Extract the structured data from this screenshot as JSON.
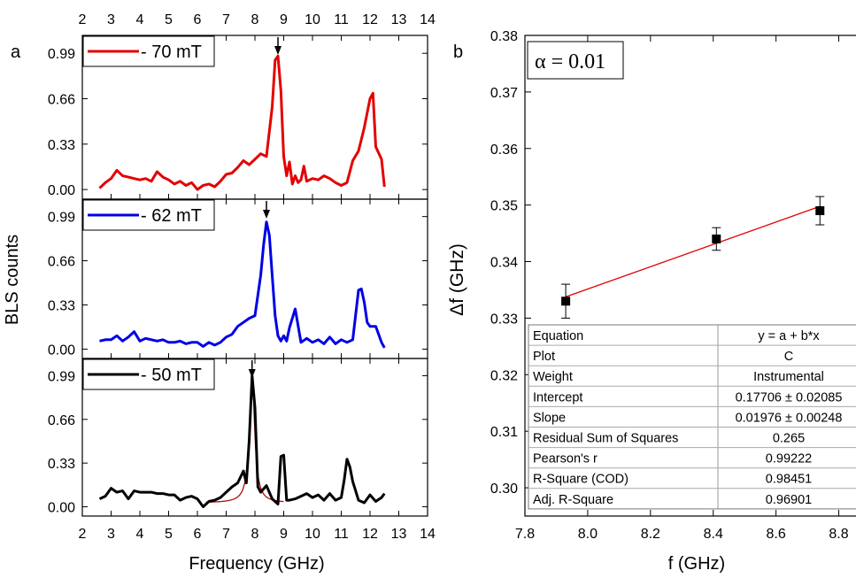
{
  "chart_data": [
    {
      "panel_label": "a",
      "type": "line",
      "xlabel": "Frequency (GHz)",
      "ylabel": "BLS counts",
      "xlim": [
        2,
        14
      ],
      "x_ticks": [
        2,
        3,
        4,
        5,
        6,
        7,
        8,
        9,
        10,
        11,
        12,
        13,
        14
      ],
      "y_ticks": [
        0.0,
        0.33,
        0.66,
        0.99
      ],
      "y_tick_labels": [
        "0.00",
        "0.33",
        "0.66",
        "0.99"
      ],
      "ylim": [
        -0.07,
        1.12
      ],
      "stacked_panels": [
        {
          "legend": "- 70 mT",
          "color": "#e30000",
          "arrow_x": 8.8,
          "x": [
            2.6,
            2.8,
            3.0,
            3.2,
            3.4,
            3.6,
            3.8,
            4.0,
            4.2,
            4.4,
            4.6,
            4.8,
            5.0,
            5.2,
            5.4,
            5.6,
            5.8,
            6.0,
            6.2,
            6.4,
            6.6,
            6.8,
            7.0,
            7.2,
            7.4,
            7.6,
            7.8,
            8.0,
            8.2,
            8.4,
            8.6,
            8.7,
            8.8,
            8.9,
            9.0,
            9.1,
            9.2,
            9.3,
            9.4,
            9.5,
            9.6,
            9.7,
            9.8,
            10.0,
            10.2,
            10.4,
            10.6,
            10.8,
            11.0,
            11.2,
            11.4,
            11.6,
            11.8,
            12.0,
            12.1,
            12.2,
            12.4,
            12.5
          ],
          "y": [
            0.01,
            0.05,
            0.08,
            0.14,
            0.1,
            0.09,
            0.08,
            0.07,
            0.08,
            0.06,
            0.13,
            0.09,
            0.07,
            0.04,
            0.06,
            0.03,
            0.05,
            0.0,
            0.03,
            0.04,
            0.02,
            0.06,
            0.11,
            0.12,
            0.16,
            0.21,
            0.18,
            0.22,
            0.26,
            0.24,
            0.6,
            0.94,
            0.97,
            0.72,
            0.24,
            0.1,
            0.2,
            0.04,
            0.1,
            0.05,
            0.07,
            0.17,
            0.06,
            0.08,
            0.07,
            0.1,
            0.08,
            0.05,
            0.03,
            0.05,
            0.21,
            0.28,
            0.45,
            0.66,
            0.7,
            0.31,
            0.22,
            0.02
          ]
        },
        {
          "legend": "- 62 mT",
          "color": "#0000e6",
          "arrow_x": 8.4,
          "x": [
            2.6,
            2.8,
            3.0,
            3.2,
            3.4,
            3.6,
            3.8,
            4.0,
            4.2,
            4.4,
            4.6,
            4.8,
            5.0,
            5.2,
            5.4,
            5.6,
            5.8,
            6.0,
            6.2,
            6.4,
            6.6,
            6.8,
            7.0,
            7.2,
            7.4,
            7.6,
            7.8,
            8.0,
            8.2,
            8.3,
            8.4,
            8.5,
            8.6,
            8.7,
            8.8,
            8.9,
            9.0,
            9.1,
            9.2,
            9.4,
            9.6,
            9.8,
            10.0,
            10.2,
            10.4,
            10.6,
            10.8,
            11.0,
            11.2,
            11.4,
            11.6,
            11.7,
            11.8,
            11.9,
            12.0,
            12.2,
            12.4,
            12.5
          ],
          "y": [
            0.06,
            0.07,
            0.07,
            0.1,
            0.06,
            0.09,
            0.13,
            0.06,
            0.08,
            0.07,
            0.06,
            0.07,
            0.05,
            0.05,
            0.06,
            0.04,
            0.05,
            0.05,
            0.02,
            0.05,
            0.03,
            0.05,
            0.09,
            0.11,
            0.17,
            0.2,
            0.23,
            0.25,
            0.55,
            0.78,
            0.95,
            0.85,
            0.55,
            0.25,
            0.1,
            0.06,
            0.1,
            0.06,
            0.16,
            0.3,
            0.05,
            0.08,
            0.05,
            0.07,
            0.04,
            0.09,
            0.04,
            0.07,
            0.05,
            0.07,
            0.44,
            0.45,
            0.35,
            0.2,
            0.17,
            0.17,
            0.05,
            0.01
          ]
        },
        {
          "legend": "- 50 mT",
          "color": "#000000",
          "fit_color": "#b01010",
          "arrow_x": 7.9,
          "x": [
            2.6,
            2.8,
            3.0,
            3.2,
            3.4,
            3.6,
            3.8,
            4.0,
            4.2,
            4.4,
            4.6,
            4.8,
            5.0,
            5.2,
            5.4,
            5.6,
            5.8,
            6.0,
            6.2,
            6.4,
            6.6,
            6.8,
            7.0,
            7.2,
            7.4,
            7.6,
            7.7,
            7.8,
            7.9,
            8.0,
            8.1,
            8.2,
            8.4,
            8.6,
            8.8,
            8.9,
            9.0,
            9.1,
            9.2,
            9.4,
            9.6,
            9.8,
            10.0,
            10.2,
            10.4,
            10.6,
            10.8,
            11.0,
            11.1,
            11.2,
            11.3,
            11.4,
            11.6,
            11.8,
            12.0,
            12.2,
            12.4,
            12.5
          ],
          "y": [
            0.06,
            0.08,
            0.14,
            0.11,
            0.12,
            0.06,
            0.12,
            0.11,
            0.11,
            0.11,
            0.1,
            0.1,
            0.09,
            0.09,
            0.05,
            0.07,
            0.08,
            0.06,
            0.0,
            0.04,
            0.05,
            0.07,
            0.11,
            0.15,
            0.18,
            0.27,
            0.18,
            0.5,
            0.99,
            0.75,
            0.15,
            0.11,
            0.16,
            0.06,
            0.02,
            0.38,
            0.39,
            0.05,
            0.05,
            0.06,
            0.08,
            0.1,
            0.07,
            0.09,
            0.05,
            0.1,
            0.05,
            0.07,
            0.2,
            0.36,
            0.3,
            0.19,
            0.05,
            0.03,
            0.09,
            0.04,
            0.07,
            0.1
          ]
        }
      ]
    },
    {
      "panel_label": "b",
      "type": "scatter",
      "xlabel": "f (GHz)",
      "ylabel": "Δf (GHz)",
      "xlim": [
        7.8,
        8.9
      ],
      "ylim": [
        0.295,
        0.38
      ],
      "x_ticks": [
        7.8,
        8.0,
        8.2,
        8.4,
        8.6,
        8.8
      ],
      "x_tick_labels": [
        "7.8",
        "8.0",
        "8.2",
        "8.4",
        "8.6",
        "8.8"
      ],
      "y_ticks": [
        0.3,
        0.31,
        0.32,
        0.33,
        0.34,
        0.35,
        0.36,
        0.37,
        0.38
      ],
      "y_tick_labels": [
        "0.30",
        "0.31",
        "0.32",
        "0.33",
        "0.34",
        "0.35",
        "0.36",
        "0.37",
        "0.38"
      ],
      "annotation": "α = 0.01",
      "points": [
        {
          "x": 7.93,
          "y": 0.333,
          "err": 0.003
        },
        {
          "x": 8.41,
          "y": 0.344,
          "err": 0.002
        },
        {
          "x": 8.74,
          "y": 0.349,
          "err": 0.0025
        }
      ],
      "fit_line": {
        "intercept": 0.17706,
        "slope": 0.01976,
        "color": "#e30000"
      },
      "fit_table": [
        [
          "Equation",
          "y = a + b*x"
        ],
        [
          "Plot",
          "C"
        ],
        [
          "Weight",
          "Instrumental"
        ],
        [
          "Intercept",
          "0.17706 ± 0.02085"
        ],
        [
          "Slope",
          "0.01976 ± 0.00248"
        ],
        [
          "Residual Sum of Squares",
          "0.265"
        ],
        [
          "Pearson's r",
          "0.99222"
        ],
        [
          "R-Square (COD)",
          "0.98451"
        ],
        [
          "Adj. R-Square",
          "0.96901"
        ]
      ]
    }
  ]
}
